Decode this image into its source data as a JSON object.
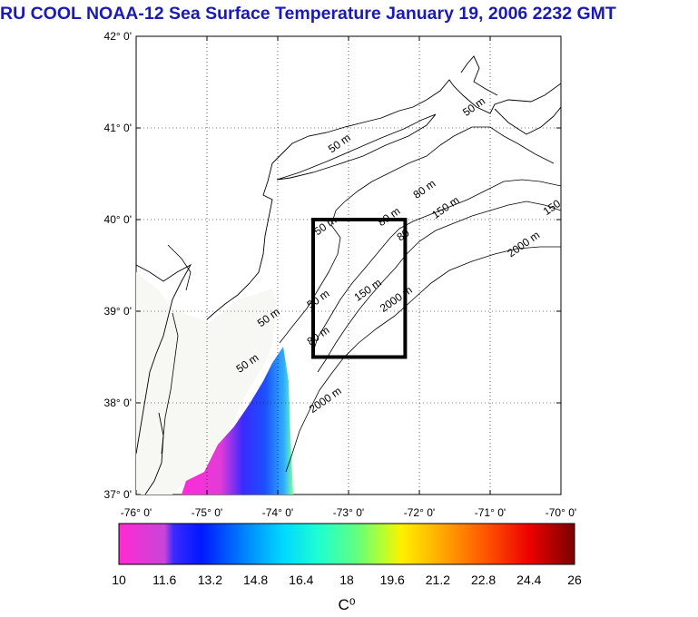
{
  "title": "RU COOL  NOAA-12 Sea Surface Temperature January 19, 2006 2232 GMT",
  "map": {
    "lat_ticks": [
      "42° 0'",
      "41° 0'",
      "40° 0'",
      "39° 0'",
      "38° 0'",
      "37° 0'"
    ],
    "lon_ticks": [
      "-76° 0'",
      "-75° 0'",
      "-74° 0'",
      "-73° 0'",
      "-72° 0'",
      "-71° 0'",
      "-70° 0'"
    ],
    "lat_range": [
      37,
      42
    ],
    "lon_range": [
      -76,
      -70
    ],
    "study_box": {
      "lon_min": -73.5,
      "lon_max": -72.2,
      "lat_min": 38.5,
      "lat_max": 40.0
    },
    "contour_labels": [
      {
        "text": "50 m",
        "lon": -73.1,
        "lat": 40.8
      },
      {
        "text": "50 m",
        "lon": -71.2,
        "lat": 41.2
      },
      {
        "text": "80 m",
        "lon": -71.9,
        "lat": 40.3
      },
      {
        "text": "80 m",
        "lon": -72.4,
        "lat": 40.0
      },
      {
        "text": "150 m",
        "lon": -71.6,
        "lat": 40.1
      },
      {
        "text": "150",
        "lon": -70.1,
        "lat": 40.1
      },
      {
        "text": "2000 m",
        "lon": -70.5,
        "lat": 39.7
      },
      {
        "text": "50 m",
        "lon": -73.3,
        "lat": 39.9
      },
      {
        "text": "80",
        "lon": -72.2,
        "lat": 39.8
      },
      {
        "text": "50 m",
        "lon": -73.4,
        "lat": 39.1
      },
      {
        "text": "150 m",
        "lon": -72.7,
        "lat": 39.2
      },
      {
        "text": "2000 m",
        "lon": -72.3,
        "lat": 39.1
      },
      {
        "text": "50 m",
        "lon": -74.1,
        "lat": 38.9
      },
      {
        "text": "80 m",
        "lon": -73.4,
        "lat": 38.7
      },
      {
        "text": "2000 m",
        "lon": -73.3,
        "lat": 38.0
      },
      {
        "text": "50 m",
        "lon": -74.4,
        "lat": 38.4
      }
    ]
  },
  "colorbar": {
    "ticks": [
      "10",
      "11.6",
      "13.2",
      "14.8",
      "16.4",
      "18",
      "19.6",
      "21.2",
      "22.8",
      "24.4",
      "26"
    ],
    "min": 10,
    "max": 26,
    "unit": "C⁰"
  },
  "colors": {
    "title": "#1a1ab8",
    "land": "#ffffff",
    "ocean": "#ffffff",
    "box": "#000000",
    "nodata": "#f7f7f3"
  }
}
